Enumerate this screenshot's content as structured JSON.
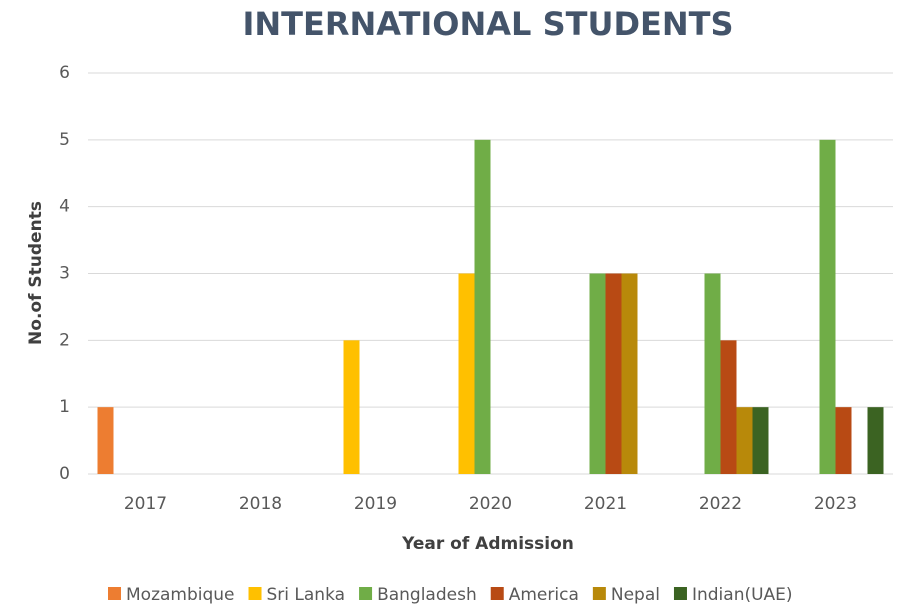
{
  "chart_data": {
    "type": "bar",
    "title": "INTERNATIONAL STUDENTS",
    "x_label": "Year  of Admission",
    "y_label": "No.of Students",
    "categories": [
      "2017",
      "2018",
      "2019",
      "2020",
      "2021",
      "2022",
      "2023"
    ],
    "series": [
      {
        "name": "Mozambique",
        "color": "#ed7d31",
        "values": [
          1,
          0,
          0,
          0,
          0,
          0,
          0
        ]
      },
      {
        "name": "Sri Lanka",
        "color": "#ffc000",
        "values": [
          0,
          0,
          2,
          3,
          0,
          0,
          0
        ]
      },
      {
        "name": "Bangladesh",
        "color": "#70ad47",
        "values": [
          0,
          0,
          0,
          5,
          3,
          3,
          5
        ]
      },
      {
        "name": "America",
        "color": "#b84a14",
        "values": [
          0,
          0,
          0,
          0,
          3,
          2,
          1
        ]
      },
      {
        "name": "Nepal",
        "color": "#b8890a",
        "values": [
          0,
          0,
          0,
          0,
          3,
          1,
          0
        ]
      },
      {
        "name": "Indian(UAE)",
        "color": "#3b6322",
        "values": [
          0,
          0,
          0,
          0,
          0,
          1,
          1
        ]
      }
    ],
    "ylim": [
      0,
      6
    ],
    "yticks": [
      0,
      1,
      2,
      3,
      4,
      5,
      6
    ],
    "grid": true,
    "legend": "bottom"
  }
}
